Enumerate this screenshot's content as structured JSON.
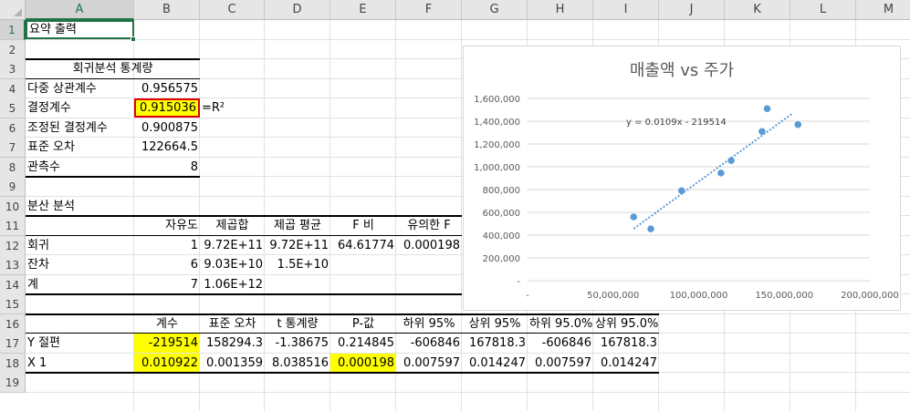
{
  "sheet": {
    "columns": [
      "A",
      "B",
      "C",
      "D",
      "E",
      "F",
      "G",
      "H",
      "I",
      "J",
      "K",
      "L",
      "M"
    ],
    "rows": [
      "1",
      "2",
      "3",
      "4",
      "5",
      "6",
      "7",
      "8",
      "9",
      "10",
      "11",
      "12",
      "13",
      "14",
      "15",
      "16",
      "17",
      "18",
      "19"
    ],
    "active_column": "A",
    "active_row": "1"
  },
  "cells": {
    "a1": "요약 출력",
    "reg_stats_title": "회귀분석 통계량",
    "a4": "다중 상관계수",
    "b4": "0.956575",
    "a5": "결정계수",
    "b5": "0.915036",
    "c5": "=R²",
    "a6": "조정된 결정계수",
    "b6": "0.900875",
    "a7": "표준 오차",
    "b7": "122664.5",
    "a8": "관측수",
    "b8": "8",
    "a10": "분산 분석",
    "b11": "자유도",
    "c11": "제곱합",
    "d11": "제곱 평균",
    "e11": "F 비",
    "f11": "유의한 F",
    "a12": "회귀",
    "b12": "1",
    "c12": "9.72E+11",
    "d12": "9.72E+11",
    "e12": "64.61774",
    "f12": "0.000198",
    "a13": "잔차",
    "b13": "6",
    "c13": "9.03E+10",
    "d13": "1.5E+10",
    "a14": "계",
    "b14": "7",
    "c14": "1.06E+12",
    "b16": "계수",
    "c16": "표준 오차",
    "d16": "t 통계량",
    "e16": "P-값",
    "f16": "하위 95%",
    "g16": "상위 95%",
    "h16": "하위 95.0%",
    "i16": "상위 95.0%",
    "a17": "Y 절편",
    "b17": "-219514",
    "c17": "158294.3",
    "d17": "-1.38675",
    "e17": "0.214845",
    "f17": "-606846",
    "g17": "167818.3",
    "h17": "-606846",
    "i17": "167818.3",
    "a18": "X 1",
    "b18": "0.010922",
    "c18": "0.001359",
    "d18": "8.038516",
    "e18": "0.000198",
    "f18": "0.007597",
    "g18": "0.014247",
    "h18": "0.007597",
    "i18": "0.014247"
  },
  "colors": {
    "highlight": "#ffff00",
    "highlight_border": "#e00000",
    "selection": "#217346",
    "series": "#5b9bd5"
  },
  "chart_data": {
    "type": "scatter",
    "title": "매출액 vs 주가",
    "xlabel": "",
    "ylabel": "",
    "xlim": [
      0,
      200000000
    ],
    "ylim": [
      0,
      1600000
    ],
    "x_ticks": [
      0,
      50000000,
      100000000,
      150000000,
      200000000
    ],
    "x_tick_labels": [
      "-",
      "50,000,000",
      "100,000,000",
      "150,000,000",
      "200,000,000"
    ],
    "y_ticks": [
      0,
      200000,
      400000,
      600000,
      800000,
      1000000,
      1200000,
      1400000,
      1600000
    ],
    "y_tick_labels": [
      "-",
      "200,000",
      "400,000",
      "600,000",
      "800,000",
      "1,000,000",
      "1,200,000",
      "1,400,000",
      "1,600,000"
    ],
    "grid": true,
    "legend": "none",
    "series": [
      {
        "x": [
          62000000,
          72000000,
          90000000,
          113000000,
          119000000,
          137000000,
          140000000,
          158000000
        ],
        "y": [
          560000,
          455000,
          790000,
          945000,
          1055000,
          1310000,
          1510000,
          1370000
        ]
      }
    ],
    "trendline": {
      "type": "linear",
      "equation": "y = 0.0109x - 219514",
      "slope": 0.0109,
      "intercept": -219514,
      "x_range": [
        62000000,
        155000000
      ]
    }
  }
}
